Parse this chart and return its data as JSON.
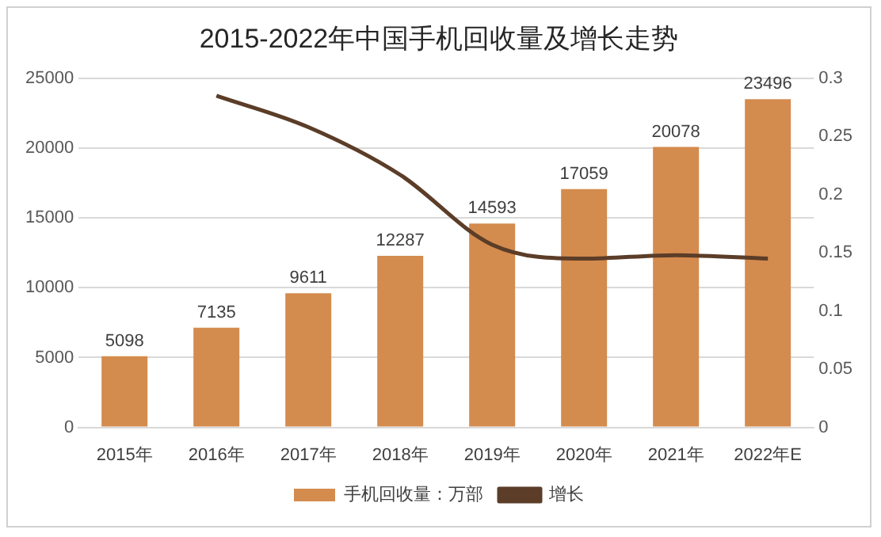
{
  "chart_data": {
    "type": "bar",
    "title": "2015-2022年中国手机回收量及增长走势",
    "categories": [
      "2015年",
      "2016年",
      "2017年",
      "2018年",
      "2019年",
      "2020年",
      "2021年",
      "2022年E"
    ],
    "series": [
      {
        "name": "手机回收量：万部",
        "color": "#d48b4e",
        "values": [
          5098,
          7135,
          9611,
          12287,
          14593,
          17059,
          20078,
          23496
        ],
        "value_labels": [
          "5098",
          "7135",
          "9611",
          "12287",
          "14593",
          "17059",
          "20078",
          "23496"
        ]
      },
      {
        "name": "增长",
        "type": "line",
        "axis": "y2",
        "color": "#5b3d28",
        "values": [
          null,
          0.285,
          0.258,
          0.217,
          0.157,
          0.145,
          0.148,
          0.145
        ]
      }
    ],
    "ylim": [
      0,
      25000
    ],
    "yticks": [
      0,
      5000,
      10000,
      15000,
      20000,
      25000
    ],
    "y2lim": [
      0,
      0.3
    ],
    "y2ticks": [
      0,
      0.05,
      0.1,
      0.15,
      0.2,
      0.25,
      0.3
    ],
    "grid": "y",
    "legend": "bottom",
    "marker": "none"
  }
}
